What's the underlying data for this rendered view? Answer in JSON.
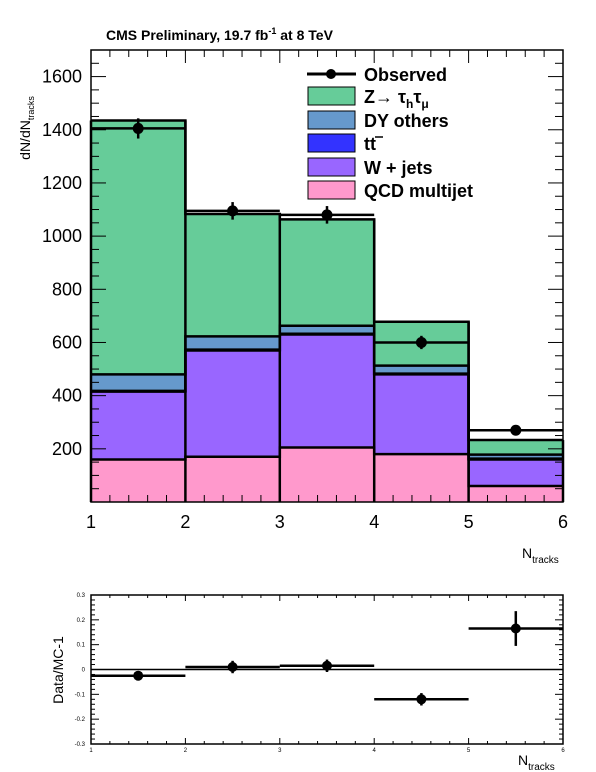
{
  "chart_data": [
    {
      "type": "bar",
      "stacked": true,
      "title": "CMS Preliminary,  19.7 fb",
      "title_sup": "-1",
      "title_tail": " at 8 TeV",
      "xlabel": "N",
      "xlabel_sub": "tracks",
      "ylabel": "dN/dN",
      "ylabel_sub": "tracks",
      "xlim": [
        1,
        6
      ],
      "ylim": [
        0,
        1700
      ],
      "x_edges": [
        1,
        2,
        3,
        4,
        5,
        6
      ],
      "xticks": [
        "1",
        "2",
        "3",
        "4",
        "5",
        "6"
      ],
      "yticks": [
        200,
        400,
        600,
        800,
        1000,
        1200,
        1400,
        1600
      ],
      "series": [
        {
          "key": "qcd",
          "name": "QCD multijet",
          "color": "#ff99cc",
          "values": [
            160,
            170,
            205,
            180,
            60
          ]
        },
        {
          "key": "wjets",
          "name": "W + jets",
          "color": "#9966ff",
          "values": [
            255,
            400,
            425,
            300,
            100
          ]
        },
        {
          "key": "ttbar",
          "name": "tt",
          "color": "#3333ff",
          "values": [
            3,
            3,
            3,
            3,
            3
          ]
        },
        {
          "key": "dyothers",
          "name": "DY others",
          "color": "#6699cc",
          "values": [
            62,
            50,
            30,
            30,
            15
          ]
        },
        {
          "key": "ztautau",
          "name": "Z→ τ",
          "name_sub1": "h",
          "name_mid": "τ",
          "name_sub2": "μ",
          "color": "#66cc99",
          "values": [
            955,
            460,
            400,
            165,
            55
          ]
        }
      ],
      "observed": {
        "name": "Observed",
        "x": [
          1.5,
          2.5,
          3.5,
          4.5,
          5.5
        ],
        "y": [
          1405,
          1095,
          1080,
          600,
          270
        ],
        "err": [
          38,
          33,
          33,
          25,
          16
        ]
      },
      "legend_position": "top-right"
    },
    {
      "type": "scatter",
      "ylabel": "Data/MC-1",
      "xlabel": "N",
      "xlabel_sub": "tracks",
      "xlim": [
        1,
        6
      ],
      "ylim": [
        -0.3,
        0.3
      ],
      "xticks": [
        "1",
        "2",
        "3",
        "4",
        "5",
        "6"
      ],
      "yticks": [
        "-0.3",
        "-0.2",
        "-0.1",
        "0",
        "0.1",
        "0.2",
        "0.3"
      ],
      "x": [
        1.5,
        2.5,
        3.5,
        4.5,
        5.5
      ],
      "y": [
        -0.025,
        0.01,
        0.015,
        -0.12,
        0.165
      ],
      "xerr": 0.5,
      "yerr": [
        0.01,
        0.025,
        0.025,
        0.025,
        0.07
      ],
      "reference_line": 0
    }
  ]
}
